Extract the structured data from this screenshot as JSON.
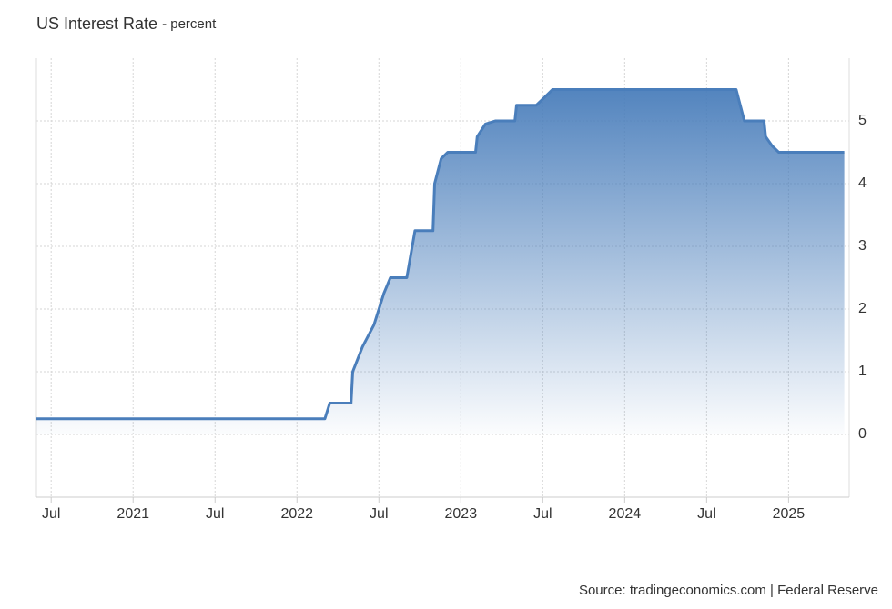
{
  "chart_data": {
    "type": "area",
    "title": "US Interest Rate",
    "subtitle": "- percent",
    "source": "Source: tradingeconomics.com | Federal Reserve",
    "color": "#4a7ebb",
    "x": [
      2020.41,
      2022.17,
      2022.2,
      2022.33,
      2022.34,
      2022.4,
      2022.47,
      2022.53,
      2022.57,
      2022.67,
      2022.72,
      2022.83,
      2022.84,
      2022.88,
      2022.92,
      2023.09,
      2023.1,
      2023.15,
      2023.21,
      2023.33,
      2023.34,
      2023.46,
      2023.5,
      2023.56,
      2024.68,
      2024.73,
      2024.85,
      2024.86,
      2024.9,
      2024.94,
      2025.34
    ],
    "values": [
      0.25,
      0.25,
      0.5,
      0.5,
      1.0,
      1.4,
      1.75,
      2.25,
      2.5,
      2.5,
      3.25,
      3.25,
      4.0,
      4.4,
      4.5,
      4.5,
      4.75,
      4.95,
      5.0,
      5.0,
      5.25,
      5.25,
      5.35,
      5.5,
      5.5,
      5.0,
      5.0,
      4.75,
      4.6,
      4.5,
      4.5
    ],
    "xlim": [
      2020.41,
      2025.37
    ],
    "xticks": [
      {
        "value": 2020.5,
        "label": "Jul"
      },
      2021,
      {
        "value": 2021.5,
        "label": "Jul"
      },
      2022,
      {
        "value": 2022.5,
        "label": "Jul"
      },
      2023,
      {
        "value": 2023.5,
        "label": "Jul"
      },
      2024,
      {
        "value": 2024.5,
        "label": "Jul"
      },
      2025
    ],
    "ylim": [
      -1,
      6
    ],
    "yticks": [
      0,
      1,
      2,
      3,
      4,
      5
    ],
    "grid": true
  }
}
